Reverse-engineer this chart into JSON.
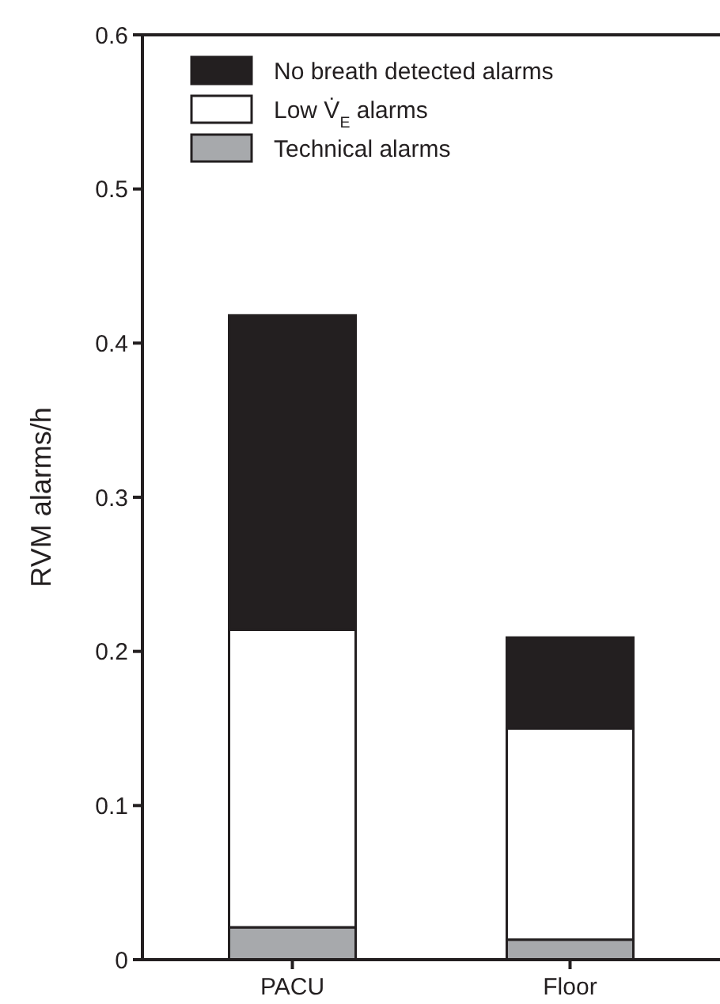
{
  "chart_data": {
    "type": "bar",
    "stacked": true,
    "categories": [
      "PACU",
      "Floor"
    ],
    "ylabel": "RVM alarms/h",
    "ylim": [
      0,
      0.6
    ],
    "yticks": [
      0,
      0.1,
      0.2,
      0.3,
      0.4,
      0.5,
      0.6
    ],
    "legend": "top left",
    "series": [
      {
        "name": "Technical alarms",
        "color": "#a7a9ac",
        "values": [
          0.021,
          0.013
        ]
      },
      {
        "name": "Low V̇$_{E}$ alarms",
        "color": "#ffffff",
        "values": [
          0.193,
          0.137
        ]
      },
      {
        "name": "No breath detected alarms",
        "color": "#231f20",
        "values": [
          0.204,
          0.059
        ]
      }
    ]
  }
}
